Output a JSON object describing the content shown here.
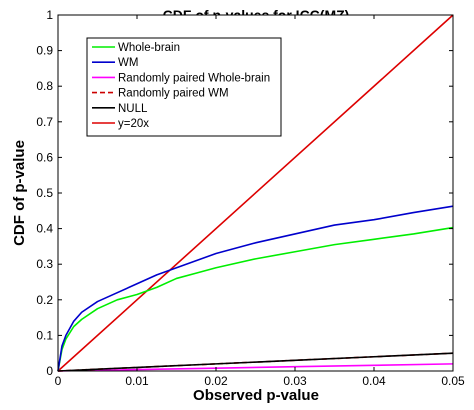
{
  "chart_data": {
    "type": "line",
    "title": "CDF of p-values for ICC(MZ)",
    "xlabel": "Observed p-value",
    "ylabel": "CDF of  p-value",
    "xlim": [
      0,
      0.05
    ],
    "ylim": [
      0,
      1
    ],
    "xticks": [
      "0",
      "0.01",
      "0.02",
      "0.03",
      "0.04",
      "0.05"
    ],
    "yticks": [
      "0",
      "0.1",
      "0.2",
      "0.3",
      "0.4",
      "0.5",
      "0.6",
      "0.7",
      "0.8",
      "0.9",
      "1"
    ],
    "legend_position": "top-left",
    "grid": false,
    "series": [
      {
        "name": "Whole-brain",
        "color": "#00ee00",
        "dash": "solid",
        "x": [
          0,
          0.0005,
          0.001,
          0.002,
          0.003,
          0.005,
          0.0075,
          0.01,
          0.0125,
          0.015,
          0.0175,
          0.02,
          0.025,
          0.03,
          0.035,
          0.04,
          0.045,
          0.05
        ],
        "y": [
          0,
          0.06,
          0.09,
          0.125,
          0.145,
          0.175,
          0.2,
          0.215,
          0.235,
          0.26,
          0.275,
          0.29,
          0.315,
          0.335,
          0.355,
          0.37,
          0.385,
          0.403
        ]
      },
      {
        "name": "WM",
        "color": "#0000cc",
        "dash": "solid",
        "x": [
          0,
          0.0005,
          0.001,
          0.002,
          0.003,
          0.005,
          0.0075,
          0.01,
          0.0125,
          0.015,
          0.0175,
          0.02,
          0.025,
          0.03,
          0.035,
          0.04,
          0.045,
          0.05
        ],
        "y": [
          0,
          0.07,
          0.1,
          0.14,
          0.165,
          0.195,
          0.22,
          0.245,
          0.27,
          0.29,
          0.31,
          0.33,
          0.36,
          0.385,
          0.41,
          0.425,
          0.445,
          0.463
        ]
      },
      {
        "name": "Randomly paired Whole-brain",
        "color": "#ff00ff",
        "dash": "solid",
        "x": [
          0,
          0.01,
          0.02,
          0.03,
          0.04,
          0.05
        ],
        "y": [
          0,
          0.004,
          0.008,
          0.012,
          0.016,
          0.02
        ]
      },
      {
        "name": "Randomly paired WM",
        "color": "#cc0000",
        "dash": "dashed",
        "x": [
          0,
          0.01,
          0.02,
          0.03,
          0.04,
          0.05
        ],
        "y": [
          0,
          0.01,
          0.02,
          0.03,
          0.04,
          0.05
        ]
      },
      {
        "name": "NULL",
        "color": "#000000",
        "dash": "solid",
        "x": [
          0,
          0.01,
          0.02,
          0.03,
          0.04,
          0.05
        ],
        "y": [
          0,
          0.01,
          0.02,
          0.03,
          0.04,
          0.05
        ]
      },
      {
        "name": "y=20x",
        "color": "#dd0000",
        "dash": "solid",
        "x": [
          0,
          0.05
        ],
        "y": [
          0,
          1
        ]
      }
    ]
  }
}
